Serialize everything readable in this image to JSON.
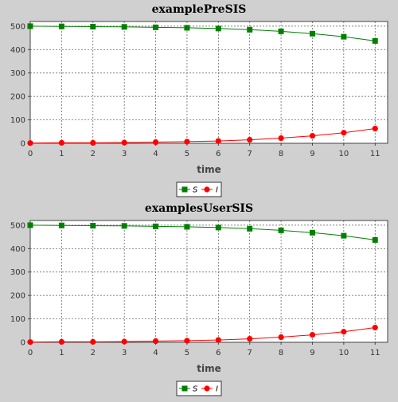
{
  "chart_data": [
    {
      "type": "line",
      "title": "examplePreSIS",
      "xlabel": "time",
      "ylabel": "",
      "xlim": [
        0,
        11.4
      ],
      "ylim": [
        0,
        520
      ],
      "xticks": [
        0,
        1,
        2,
        3,
        4,
        5,
        6,
        7,
        8,
        9,
        10,
        11
      ],
      "yticks": [
        0,
        100,
        200,
        300,
        400,
        500
      ],
      "grid": true,
      "legend_position": "bottom-center",
      "x": [
        0,
        1,
        2,
        3,
        4,
        5,
        6,
        7,
        8,
        9,
        10,
        11
      ],
      "series": [
        {
          "name": "S",
          "color": "#008000",
          "marker": "square",
          "values": [
            500,
            499,
            498,
            497,
            495,
            493,
            490,
            485,
            478,
            468,
            455,
            437
          ]
        },
        {
          "name": "I",
          "color": "#ff0000",
          "marker": "circle",
          "values": [
            1,
            2,
            2,
            3,
            5,
            7,
            10,
            15,
            22,
            32,
            45,
            63
          ]
        }
      ]
    },
    {
      "type": "line",
      "title": "examplesUserSIS",
      "xlabel": "time",
      "ylabel": "",
      "xlim": [
        0,
        11.4
      ],
      "ylim": [
        0,
        520
      ],
      "xticks": [
        0,
        1,
        2,
        3,
        4,
        5,
        6,
        7,
        8,
        9,
        10,
        11
      ],
      "yticks": [
        0,
        100,
        200,
        300,
        400,
        500
      ],
      "grid": true,
      "legend_position": "bottom-center",
      "x": [
        0,
        1,
        2,
        3,
        4,
        5,
        6,
        7,
        8,
        9,
        10,
        11
      ],
      "series": [
        {
          "name": "S",
          "color": "#008000",
          "marker": "square",
          "values": [
            500,
            499,
            498,
            497,
            495,
            493,
            490,
            485,
            478,
            468,
            455,
            437
          ]
        },
        {
          "name": "I",
          "color": "#ff0000",
          "marker": "circle",
          "values": [
            1,
            2,
            2,
            3,
            5,
            7,
            10,
            15,
            22,
            32,
            45,
            63
          ]
        }
      ]
    }
  ]
}
